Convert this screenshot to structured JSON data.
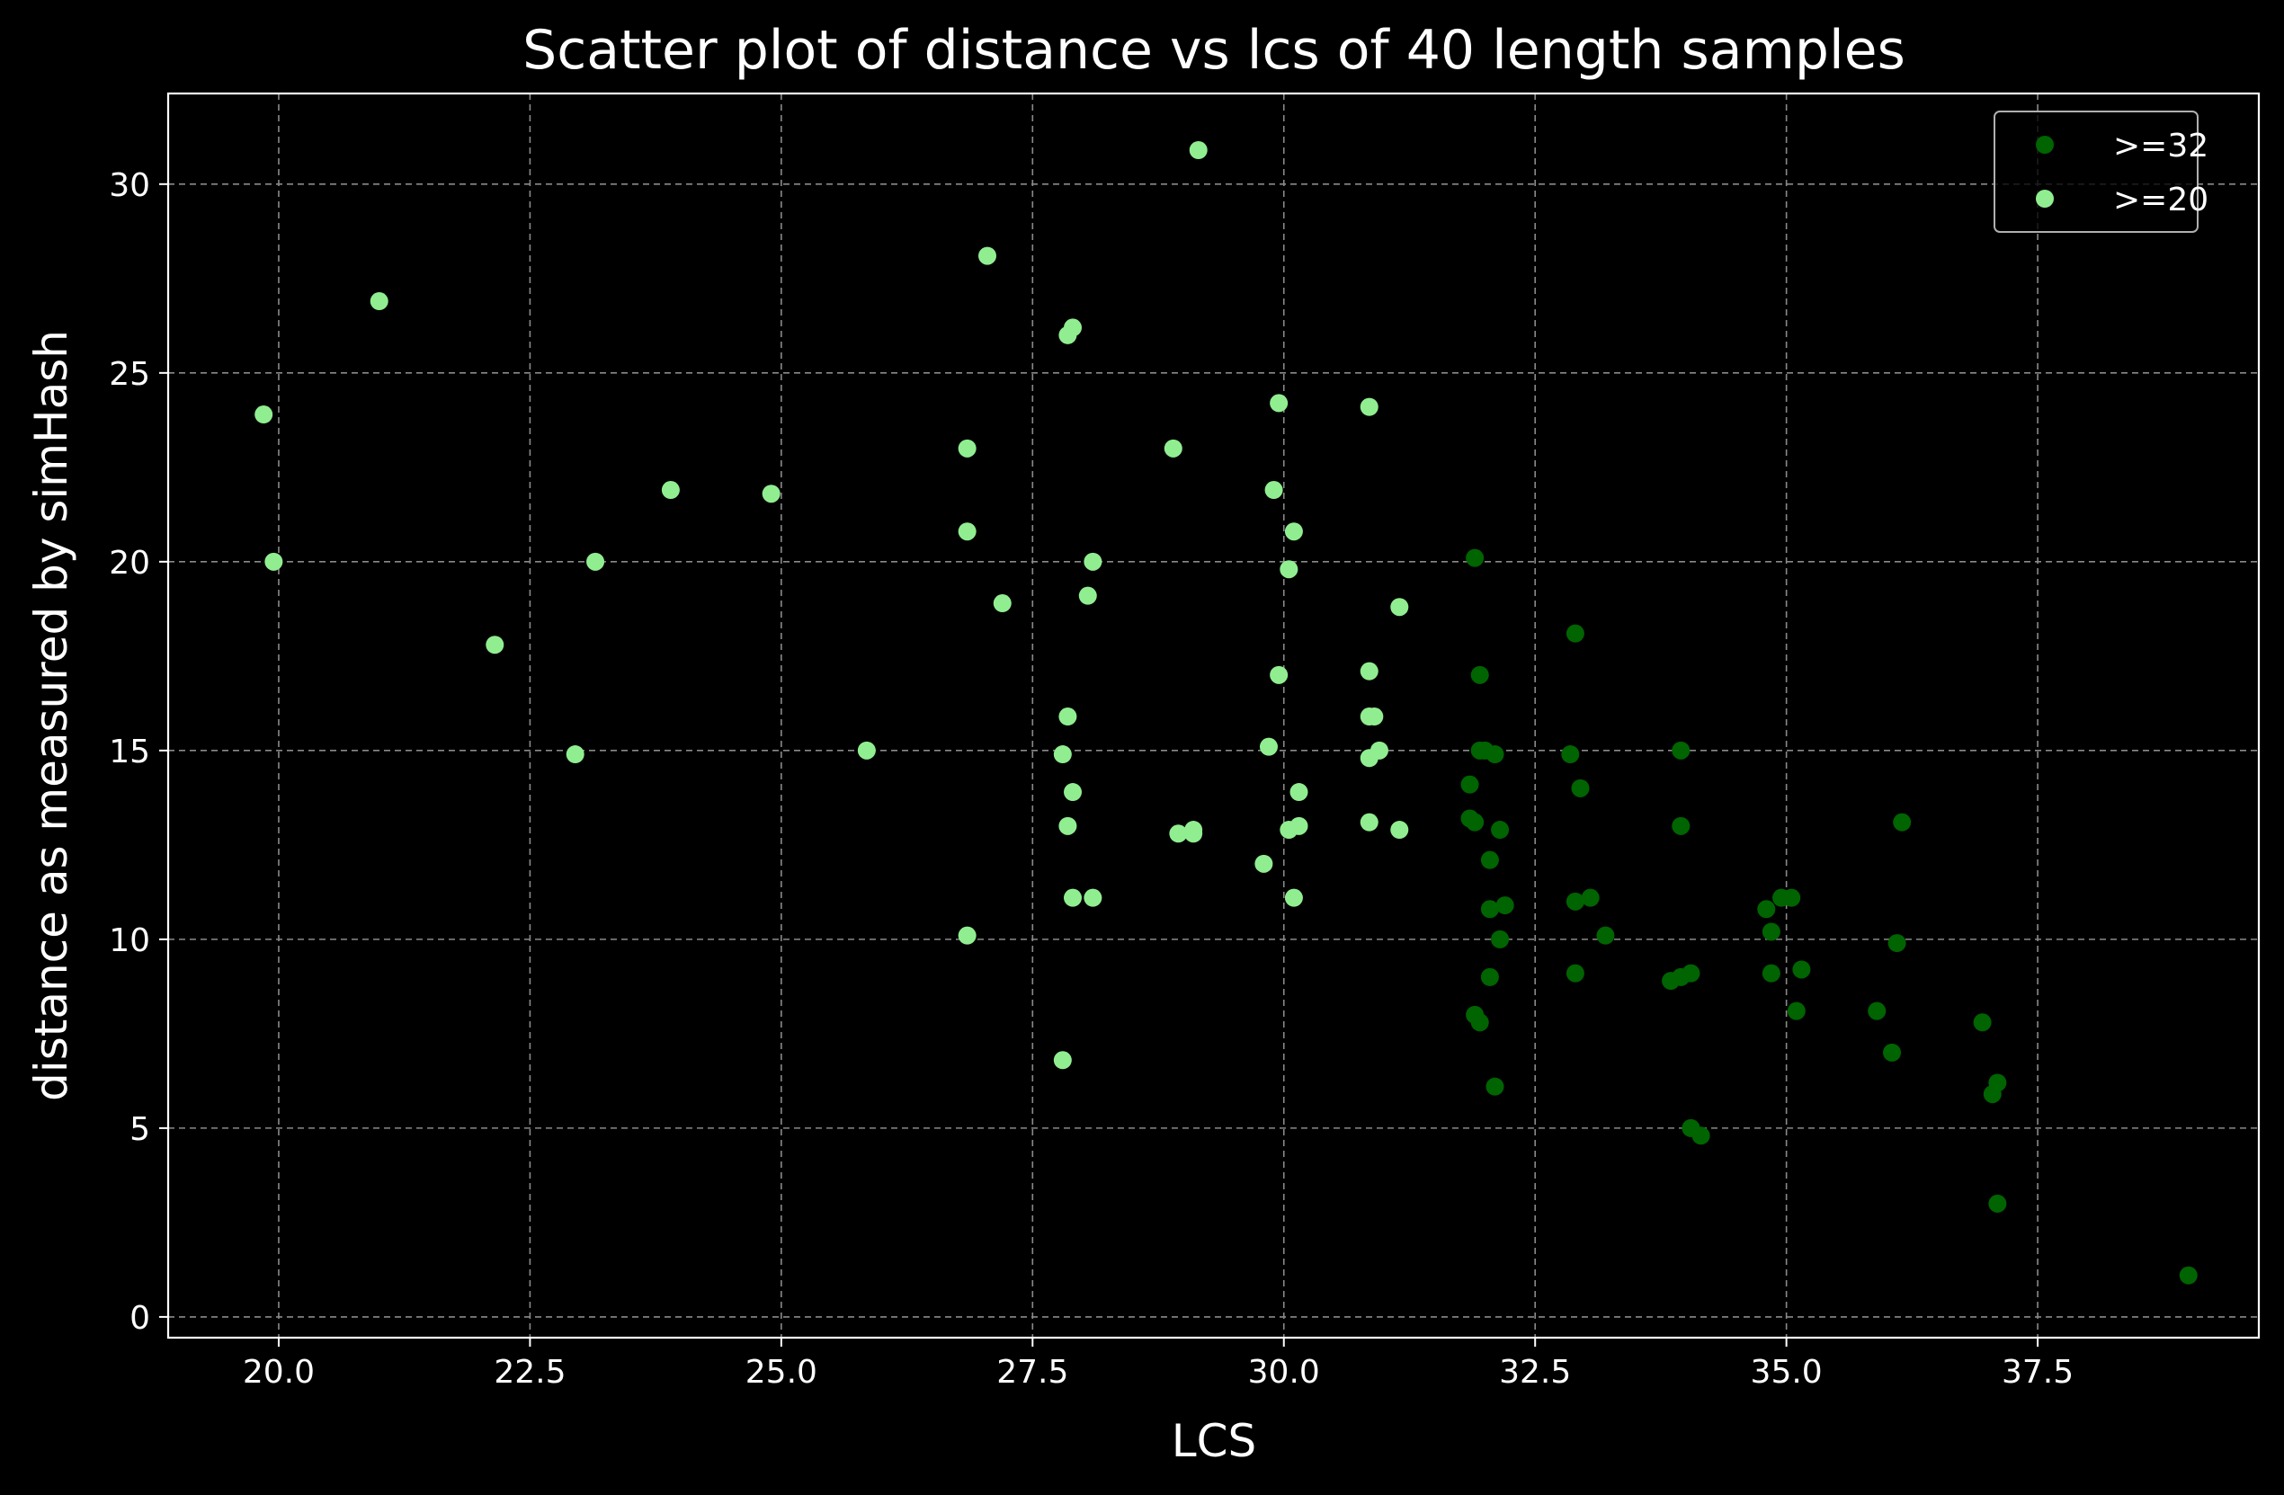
{
  "chart_data": {
    "type": "scatter",
    "title": "Scatter plot of distance vs lcs of 40 length samples",
    "xlabel": "LCS",
    "ylabel": "distance as measured by simHash",
    "xlim": [
      18.9,
      39.7
    ],
    "ylim": [
      -0.55,
      32.4
    ],
    "xticks": [
      20.0,
      22.5,
      25.0,
      27.5,
      30.0,
      32.5,
      35.0,
      37.5
    ],
    "xtick_labels": [
      "20.0",
      "22.5",
      "25.0",
      "27.5",
      "30.0",
      "32.5",
      "35.0",
      "37.5"
    ],
    "yticks": [
      0,
      5,
      10,
      15,
      20,
      25,
      30
    ],
    "ytick_labels": [
      "0",
      "5",
      "10",
      "15",
      "20",
      "25",
      "30"
    ],
    "grid": true,
    "legend_position": "top-right",
    "series": [
      {
        "name": ">=32",
        "color": "#006400",
        "points": [
          [
            31.9,
            20.1
          ],
          [
            31.95,
            17.0
          ],
          [
            31.85,
            14.1
          ],
          [
            31.95,
            15.0
          ],
          [
            32.0,
            15.0
          ],
          [
            32.1,
            14.9
          ],
          [
            31.85,
            13.2
          ],
          [
            31.9,
            13.1
          ],
          [
            32.15,
            12.9
          ],
          [
            32.05,
            12.1
          ],
          [
            32.05,
            10.8
          ],
          [
            32.2,
            10.9
          ],
          [
            32.15,
            10.0
          ],
          [
            32.05,
            9.0
          ],
          [
            31.9,
            8.0
          ],
          [
            31.95,
            7.8
          ],
          [
            32.1,
            6.1
          ],
          [
            32.9,
            18.1
          ],
          [
            32.85,
            14.9
          ],
          [
            32.95,
            14.0
          ],
          [
            32.9,
            11.0
          ],
          [
            33.05,
            11.1
          ],
          [
            33.2,
            10.1
          ],
          [
            32.9,
            9.1
          ],
          [
            33.95,
            15.0
          ],
          [
            33.95,
            13.0
          ],
          [
            33.85,
            8.9
          ],
          [
            33.95,
            9.0
          ],
          [
            34.05,
            9.1
          ],
          [
            34.05,
            5.0
          ],
          [
            34.15,
            4.8
          ],
          [
            34.8,
            10.8
          ],
          [
            34.95,
            11.1
          ],
          [
            35.05,
            11.1
          ],
          [
            34.85,
            10.2
          ],
          [
            34.85,
            9.1
          ],
          [
            35.15,
            9.2
          ],
          [
            35.1,
            8.1
          ],
          [
            36.15,
            13.1
          ],
          [
            36.1,
            9.9
          ],
          [
            35.9,
            8.1
          ],
          [
            36.05,
            7.0
          ],
          [
            36.95,
            7.8
          ],
          [
            37.05,
            5.9
          ],
          [
            37.1,
            6.2
          ],
          [
            37.1,
            3.0
          ],
          [
            39.0,
            1.1
          ]
        ]
      },
      {
        "name": ">=20",
        "color": "#90ee90",
        "points": [
          [
            19.85,
            23.9
          ],
          [
            19.95,
            20.0
          ],
          [
            21.0,
            26.9
          ],
          [
            22.15,
            17.8
          ],
          [
            22.95,
            14.9
          ],
          [
            23.15,
            20.0
          ],
          [
            23.9,
            21.9
          ],
          [
            24.9,
            21.8
          ],
          [
            25.85,
            15.0
          ],
          [
            26.85,
            23.0
          ],
          [
            26.85,
            20.8
          ],
          [
            26.85,
            10.1
          ],
          [
            27.05,
            28.1
          ],
          [
            27.2,
            18.9
          ],
          [
            27.85,
            26.0
          ],
          [
            27.9,
            26.2
          ],
          [
            27.85,
            15.9
          ],
          [
            27.8,
            14.9
          ],
          [
            27.9,
            13.9
          ],
          [
            27.85,
            13.0
          ],
          [
            27.9,
            11.1
          ],
          [
            28.1,
            11.1
          ],
          [
            27.8,
            6.8
          ],
          [
            28.1,
            20.0
          ],
          [
            28.05,
            19.1
          ],
          [
            28.9,
            23.0
          ],
          [
            28.95,
            12.8
          ],
          [
            29.1,
            12.9
          ],
          [
            29.1,
            12.8
          ],
          [
            29.15,
            30.9
          ],
          [
            29.95,
            24.2
          ],
          [
            29.9,
            21.9
          ],
          [
            30.1,
            20.8
          ],
          [
            30.05,
            19.8
          ],
          [
            29.95,
            17.0
          ],
          [
            29.85,
            15.1
          ],
          [
            30.15,
            13.9
          ],
          [
            30.05,
            12.9
          ],
          [
            30.15,
            13.0
          ],
          [
            29.8,
            12.0
          ],
          [
            30.1,
            11.1
          ],
          [
            30.85,
            24.1
          ],
          [
            30.85,
            17.1
          ],
          [
            30.85,
            15.9
          ],
          [
            30.9,
            15.9
          ],
          [
            30.95,
            15.0
          ],
          [
            30.85,
            14.8
          ],
          [
            30.85,
            13.1
          ],
          [
            31.15,
            18.8
          ],
          [
            31.15,
            12.9
          ]
        ]
      }
    ]
  }
}
